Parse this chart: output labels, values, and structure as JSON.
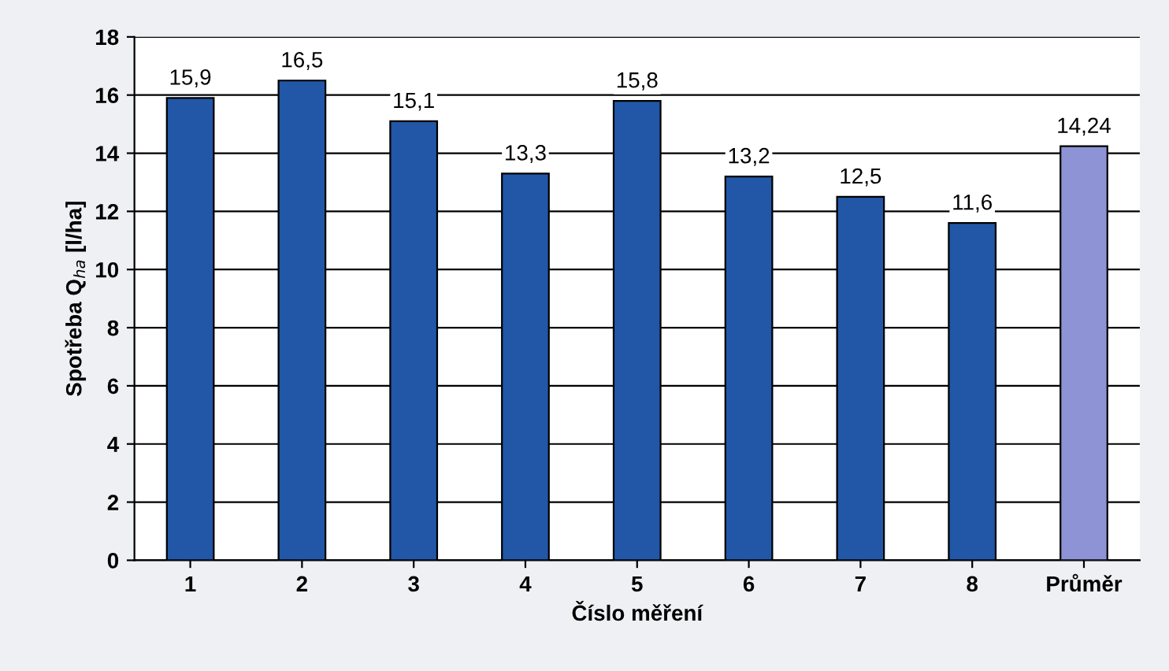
{
  "chart_data": {
    "type": "bar",
    "xlabel": "Číslo měření",
    "ylabel": "Spotřeba Q$_{ha}$ [l/ha]",
    "categories": [
      "1",
      "2",
      "3",
      "4",
      "5",
      "6",
      "7",
      "8",
      "Průměr"
    ],
    "values": [
      15.9,
      16.5,
      15.1,
      13.3,
      15.8,
      13.2,
      12.5,
      11.6,
      14.24
    ],
    "colors": [
      "#2157a6",
      "#2157a6",
      "#2157a6",
      "#2157a6",
      "#2157a6",
      "#2157a6",
      "#2157a6",
      "#2157a6",
      "#8e93d6"
    ],
    "value_labels": [
      "15,9",
      "16,5",
      "15,1",
      "13,3",
      "15,8",
      "13,2",
      "12,5",
      "11,6",
      "14,24"
    ],
    "ylim": [
      0,
      18
    ],
    "yticks": [
      0,
      2,
      4,
      6,
      8,
      10,
      12,
      14,
      16,
      18
    ],
    "grid": "y"
  }
}
